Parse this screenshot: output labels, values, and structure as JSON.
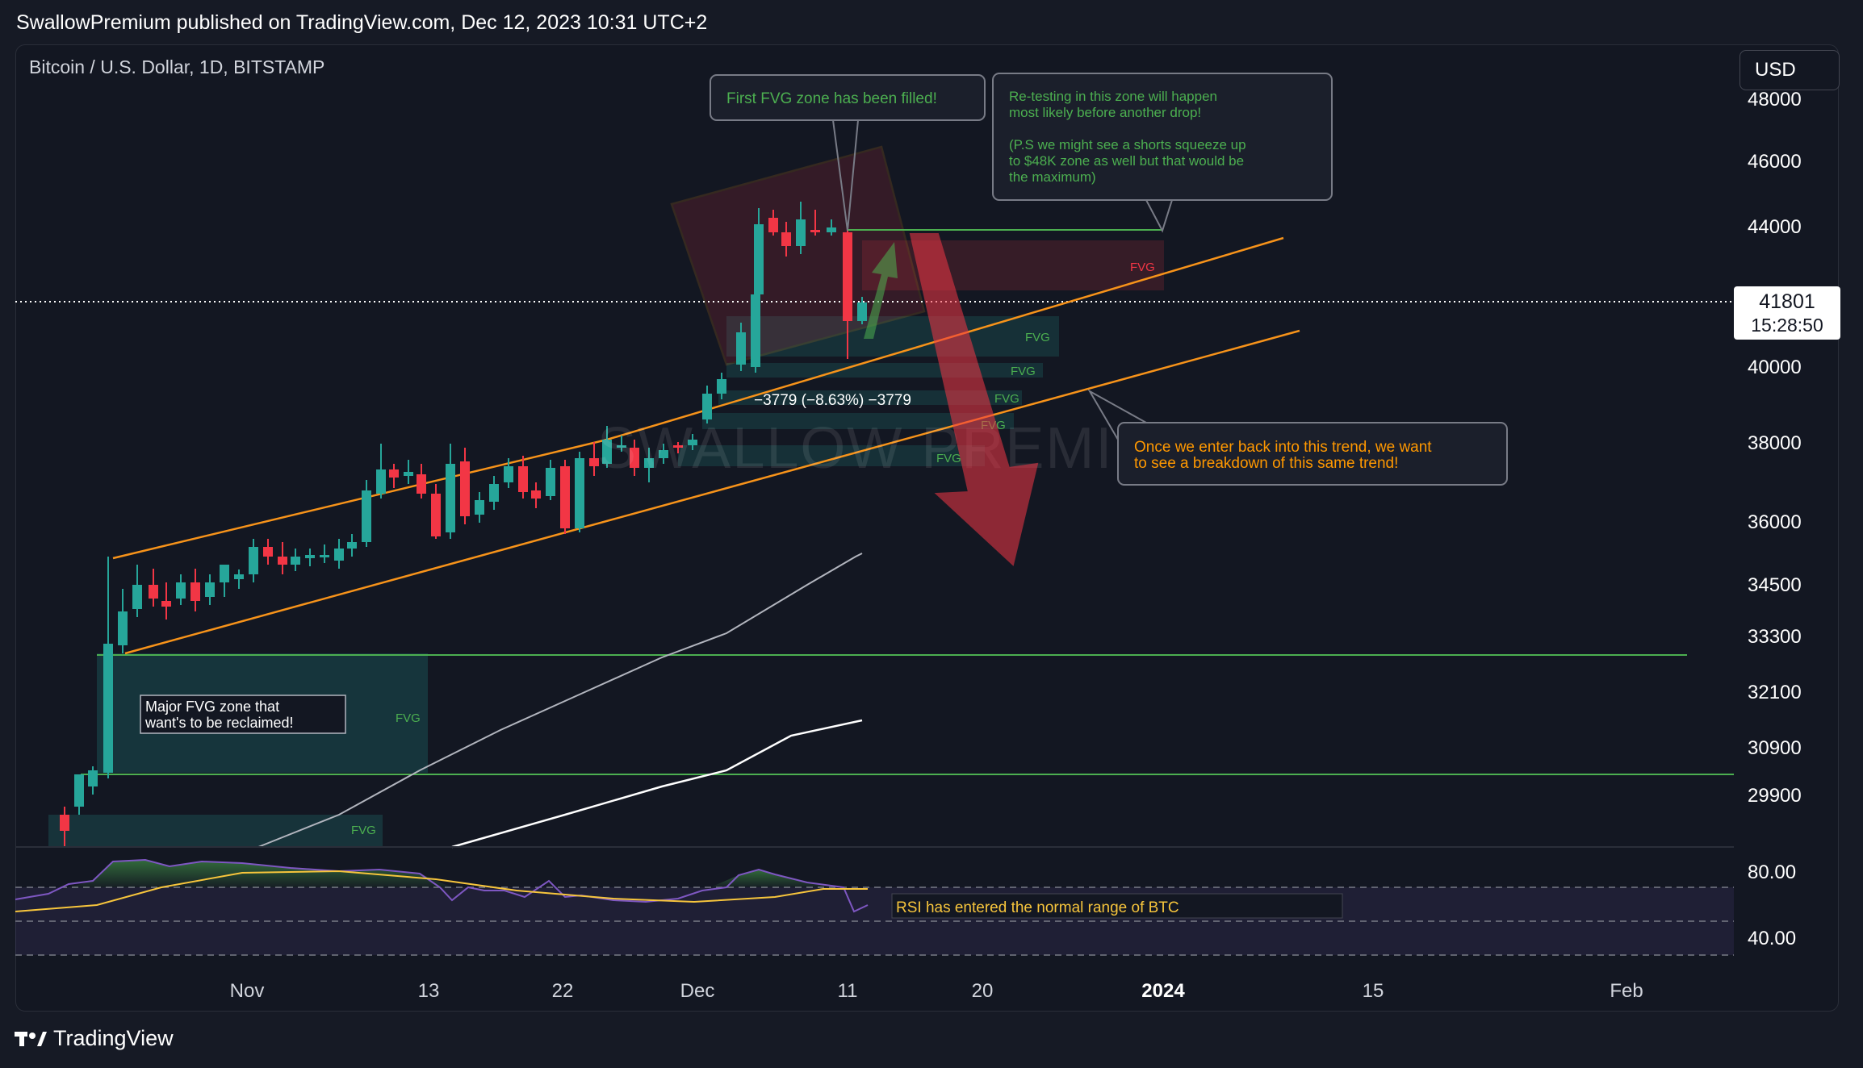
{
  "header": {
    "published_by": "SwallowPremium published on TradingView.com, Dec 12, 2023 10:31 UTC+2"
  },
  "chart": {
    "symbol": "Bitcoin / U.S. Dollar, 1D, BITSTAMP",
    "currency": "USD",
    "last_price": "41801",
    "countdown": "15:28:50",
    "watermark": "SWALLOW PREMIUM",
    "measure_label": "−3779 (−8.63%) −3779",
    "y_axis": [
      "48000",
      "46000",
      "44000",
      "40000",
      "38000",
      "36000",
      "34500",
      "33300",
      "32100",
      "30900",
      "29900"
    ],
    "x_axis": [
      "Nov",
      "13",
      "22",
      "Dec",
      "11",
      "20",
      "2024",
      "15",
      "Feb"
    ],
    "rsi_axis": [
      "80.00",
      "40.00"
    ],
    "fvg_label": "FVG",
    "colors": {
      "up": "#26a69a",
      "down": "#f23645",
      "channel": "#f7931a",
      "green_note": "#4caf50",
      "orange_note": "#ff9800",
      "rsi": "#7e57c2",
      "rsi_ma": "#f7c53c"
    }
  },
  "annotations": {
    "first_fvg": "First FVG zone has been filled!",
    "retest": [
      "Re-testing in this zone will happen",
      "most likely before another drop!",
      "",
      "(P.S we might see a shorts squeeze up",
      "to $48K zone as well but that would be",
      "the maximum)"
    ],
    "trend": [
      "Once we enter back into this trend, we want",
      "to see a breakdown of this same trend!"
    ],
    "major_fvg": [
      "Major FVG zone that",
      "want's to be reclaimed!"
    ],
    "rsi": "RSI has entered the normal range of BTC"
  },
  "footer": {
    "brand": "TradingView"
  }
}
